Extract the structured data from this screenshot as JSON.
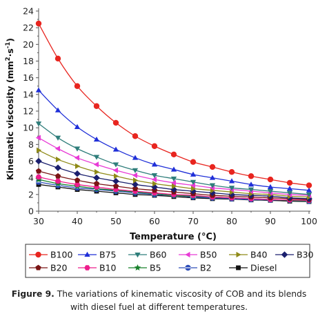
{
  "chart_data": {
    "type": "line",
    "xlabel": "Temperature (°C)",
    "ylabel_main": "Kinematic viscosity (mm",
    "ylabel_sup1": "2",
    "ylabel_mid": "·s",
    "ylabel_sup2": "-1",
    "ylabel_end": ")",
    "xlim": [
      30,
      100
    ],
    "ylim": [
      0,
      24
    ],
    "x_ticks": [
      30,
      40,
      50,
      60,
      70,
      80,
      90,
      100
    ],
    "y_ticks": [
      0,
      2,
      4,
      6,
      8,
      10,
      12,
      14,
      16,
      18,
      20,
      22,
      24
    ],
    "x": [
      30,
      35,
      40,
      45,
      50,
      55,
      60,
      65,
      70,
      75,
      80,
      85,
      90,
      95,
      100
    ],
    "legend_position": "bottom",
    "series": [
      {
        "name": "B100",
        "color": "#e8251f",
        "marker": "circle",
        "values": [
          22.5,
          18.3,
          15.0,
          12.6,
          10.6,
          9.0,
          7.8,
          6.8,
          5.9,
          5.3,
          4.7,
          4.2,
          3.8,
          3.4,
          3.1
        ]
      },
      {
        "name": "B75",
        "color": "#1f2fd8",
        "marker": "triangle-up",
        "values": [
          14.5,
          12.1,
          10.1,
          8.6,
          7.4,
          6.4,
          5.6,
          5.0,
          4.4,
          4.0,
          3.6,
          3.2,
          2.9,
          2.7,
          2.5
        ]
      },
      {
        "name": "B60",
        "color": "#2e7d7a",
        "marker": "triangle-down",
        "values": [
          10.5,
          8.8,
          7.5,
          6.5,
          5.6,
          4.9,
          4.3,
          3.9,
          3.5,
          3.1,
          2.8,
          2.6,
          2.4,
          2.2,
          2.0
        ]
      },
      {
        "name": "B50",
        "color": "#e83bd6",
        "marker": "triangle-left",
        "values": [
          8.8,
          7.5,
          6.4,
          5.6,
          4.9,
          4.3,
          3.8,
          3.4,
          3.1,
          2.8,
          2.6,
          2.4,
          2.2,
          2.0,
          1.9
        ]
      },
      {
        "name": "B40",
        "color": "#8f8a17",
        "marker": "triangle-right",
        "values": [
          7.3,
          6.2,
          5.4,
          4.7,
          4.2,
          3.7,
          3.3,
          3.0,
          2.7,
          2.5,
          2.3,
          2.1,
          2.0,
          1.8,
          1.7
        ]
      },
      {
        "name": "B30",
        "color": "#1a1f6e",
        "marker": "diamond",
        "values": [
          6.0,
          5.2,
          4.5,
          4.0,
          3.6,
          3.2,
          2.9,
          2.6,
          2.4,
          2.2,
          2.0,
          1.9,
          1.8,
          1.6,
          1.5
        ]
      },
      {
        "name": "B20",
        "color": "#7a1414",
        "marker": "pentagon",
        "values": [
          4.8,
          4.2,
          3.7,
          3.3,
          3.0,
          2.7,
          2.5,
          2.3,
          2.1,
          1.9,
          1.8,
          1.7,
          1.6,
          1.5,
          1.4
        ]
      },
      {
        "name": "B10",
        "color": "#ee1d8c",
        "marker": "hexagon",
        "values": [
          4.1,
          3.6,
          3.2,
          2.9,
          2.6,
          2.4,
          2.2,
          2.0,
          1.9,
          1.7,
          1.6,
          1.5,
          1.4,
          1.35,
          1.3
        ]
      },
      {
        "name": "B5",
        "color": "#17802b",
        "marker": "star",
        "values": [
          3.8,
          3.3,
          3.0,
          2.7,
          2.5,
          2.3,
          2.1,
          1.9,
          1.8,
          1.7,
          1.6,
          1.5,
          1.4,
          1.3,
          1.25
        ]
      },
      {
        "name": "B2",
        "color": "#2d4db8",
        "marker": "circle-bar",
        "values": [
          3.5,
          3.1,
          2.8,
          2.6,
          2.4,
          2.2,
          2.0,
          1.9,
          1.7,
          1.6,
          1.5,
          1.4,
          1.35,
          1.3,
          1.2
        ]
      },
      {
        "name": "Diesel",
        "color": "#111111",
        "marker": "square",
        "values": [
          3.2,
          2.9,
          2.6,
          2.4,
          2.2,
          2.0,
          1.9,
          1.75,
          1.6,
          1.5,
          1.45,
          1.35,
          1.3,
          1.2,
          1.15
        ]
      }
    ]
  },
  "caption": {
    "lead": "Figure 9.",
    "line1": " The variations of kinematic viscosity of COB and its blends",
    "line2": "with diesel fuel at different temperatures."
  }
}
